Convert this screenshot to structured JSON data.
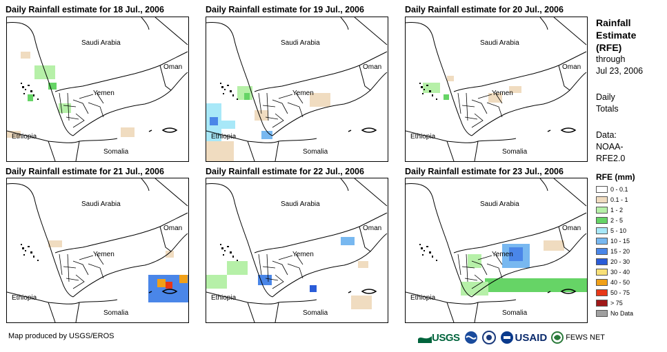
{
  "panels": [
    {
      "title": "Daily Rainfall estimate for 18 Jul., 2006",
      "labels": {
        "saudi": "Saudi Arabia",
        "oman": "Oman",
        "yemen": "Yemen",
        "ethiopia": "Ethiopia",
        "somalia": "Somalia"
      }
    },
    {
      "title": "Daily Rainfall estimate for 19 Jul., 2006",
      "labels": {
        "saudi": "Saudi Arabia",
        "oman": "Oman",
        "yemen": "Yemen",
        "ethiopia": "Ethiopia",
        "somalia": "Somalia"
      }
    },
    {
      "title": "Daily Rainfall estimate for 20 Jul., 2006",
      "labels": {
        "saudi": "Saudi Arabia",
        "oman": "Oman",
        "yemen": "Yemen",
        "ethiopia": "Ethiopia",
        "somalia": "Somalia"
      }
    },
    {
      "title": "Daily Rainfall estimate for 21 Jul., 2006",
      "labels": {
        "saudi": "Saudi Arabia",
        "oman": "Oman",
        "yemen": "Yemen",
        "ethiopia": "Ethiopia",
        "somalia": "Somalia"
      }
    },
    {
      "title": "Daily Rainfall estimate for 22 Jul., 2006",
      "labels": {
        "saudi": "Saudi Arabia",
        "oman": "Oman",
        "yemen": "Yemen",
        "ethiopia": "Ethiopia",
        "somalia": "Somalia"
      }
    },
    {
      "title": "Daily Rainfall estimate for 23 Jul., 2006",
      "labels": {
        "saudi": "Saudi Arabia",
        "oman": "Oman",
        "yemen": "Yemen",
        "ethiopia": "Ethiopia",
        "somalia": "Somalia"
      }
    }
  ],
  "sidebar": {
    "title_lines": [
      "Rainfall",
      "Estimate",
      "(RFE)"
    ],
    "through": "through",
    "date": "Jul 23, 2006",
    "daily_lines": [
      "Daily",
      "Totals"
    ],
    "data_lines": [
      "Data:",
      "NOAA-",
      "RFE2.0"
    ]
  },
  "legend": {
    "title": "RFE (mm)",
    "items": [
      {
        "label": "0 - 0.1",
        "color": "#ffffff"
      },
      {
        "label": "0.1 - 1",
        "color": "#f0dcc0"
      },
      {
        "label": "1 - 2",
        "color": "#b6f0a8"
      },
      {
        "label": "2 - 5",
        "color": "#66d466"
      },
      {
        "label": "5 - 10",
        "color": "#a8e8f8"
      },
      {
        "label": "10 - 15",
        "color": "#78b8f0"
      },
      {
        "label": "15 - 20",
        "color": "#4a86e8"
      },
      {
        "label": "20 - 30",
        "color": "#2a5cd8"
      },
      {
        "label": "30 - 40",
        "color": "#f8e078"
      },
      {
        "label": "40 - 50",
        "color": "#f0a018"
      },
      {
        "label": "50 - 75",
        "color": "#e83818"
      },
      {
        "label": "> 75",
        "color": "#a01818"
      },
      {
        "label": "No Data",
        "color": "#a0a0a0"
      }
    ]
  },
  "footer": {
    "credit": "Map produced by USGS/EROS"
  },
  "logos": [
    {
      "name": "usgs",
      "text": "USGS",
      "icon": "usgs-wave-icon"
    },
    {
      "name": "noaa",
      "text": "",
      "icon": "noaa-emblem-icon"
    },
    {
      "name": "dhs",
      "text": "",
      "icon": "dhs-seal-icon"
    },
    {
      "name": "usaid",
      "text": "USAID",
      "icon": "usaid-seal-icon"
    },
    {
      "name": "fewsnet",
      "text": "FEWS NET",
      "icon": "fewsnet-globe-icon"
    }
  ]
}
